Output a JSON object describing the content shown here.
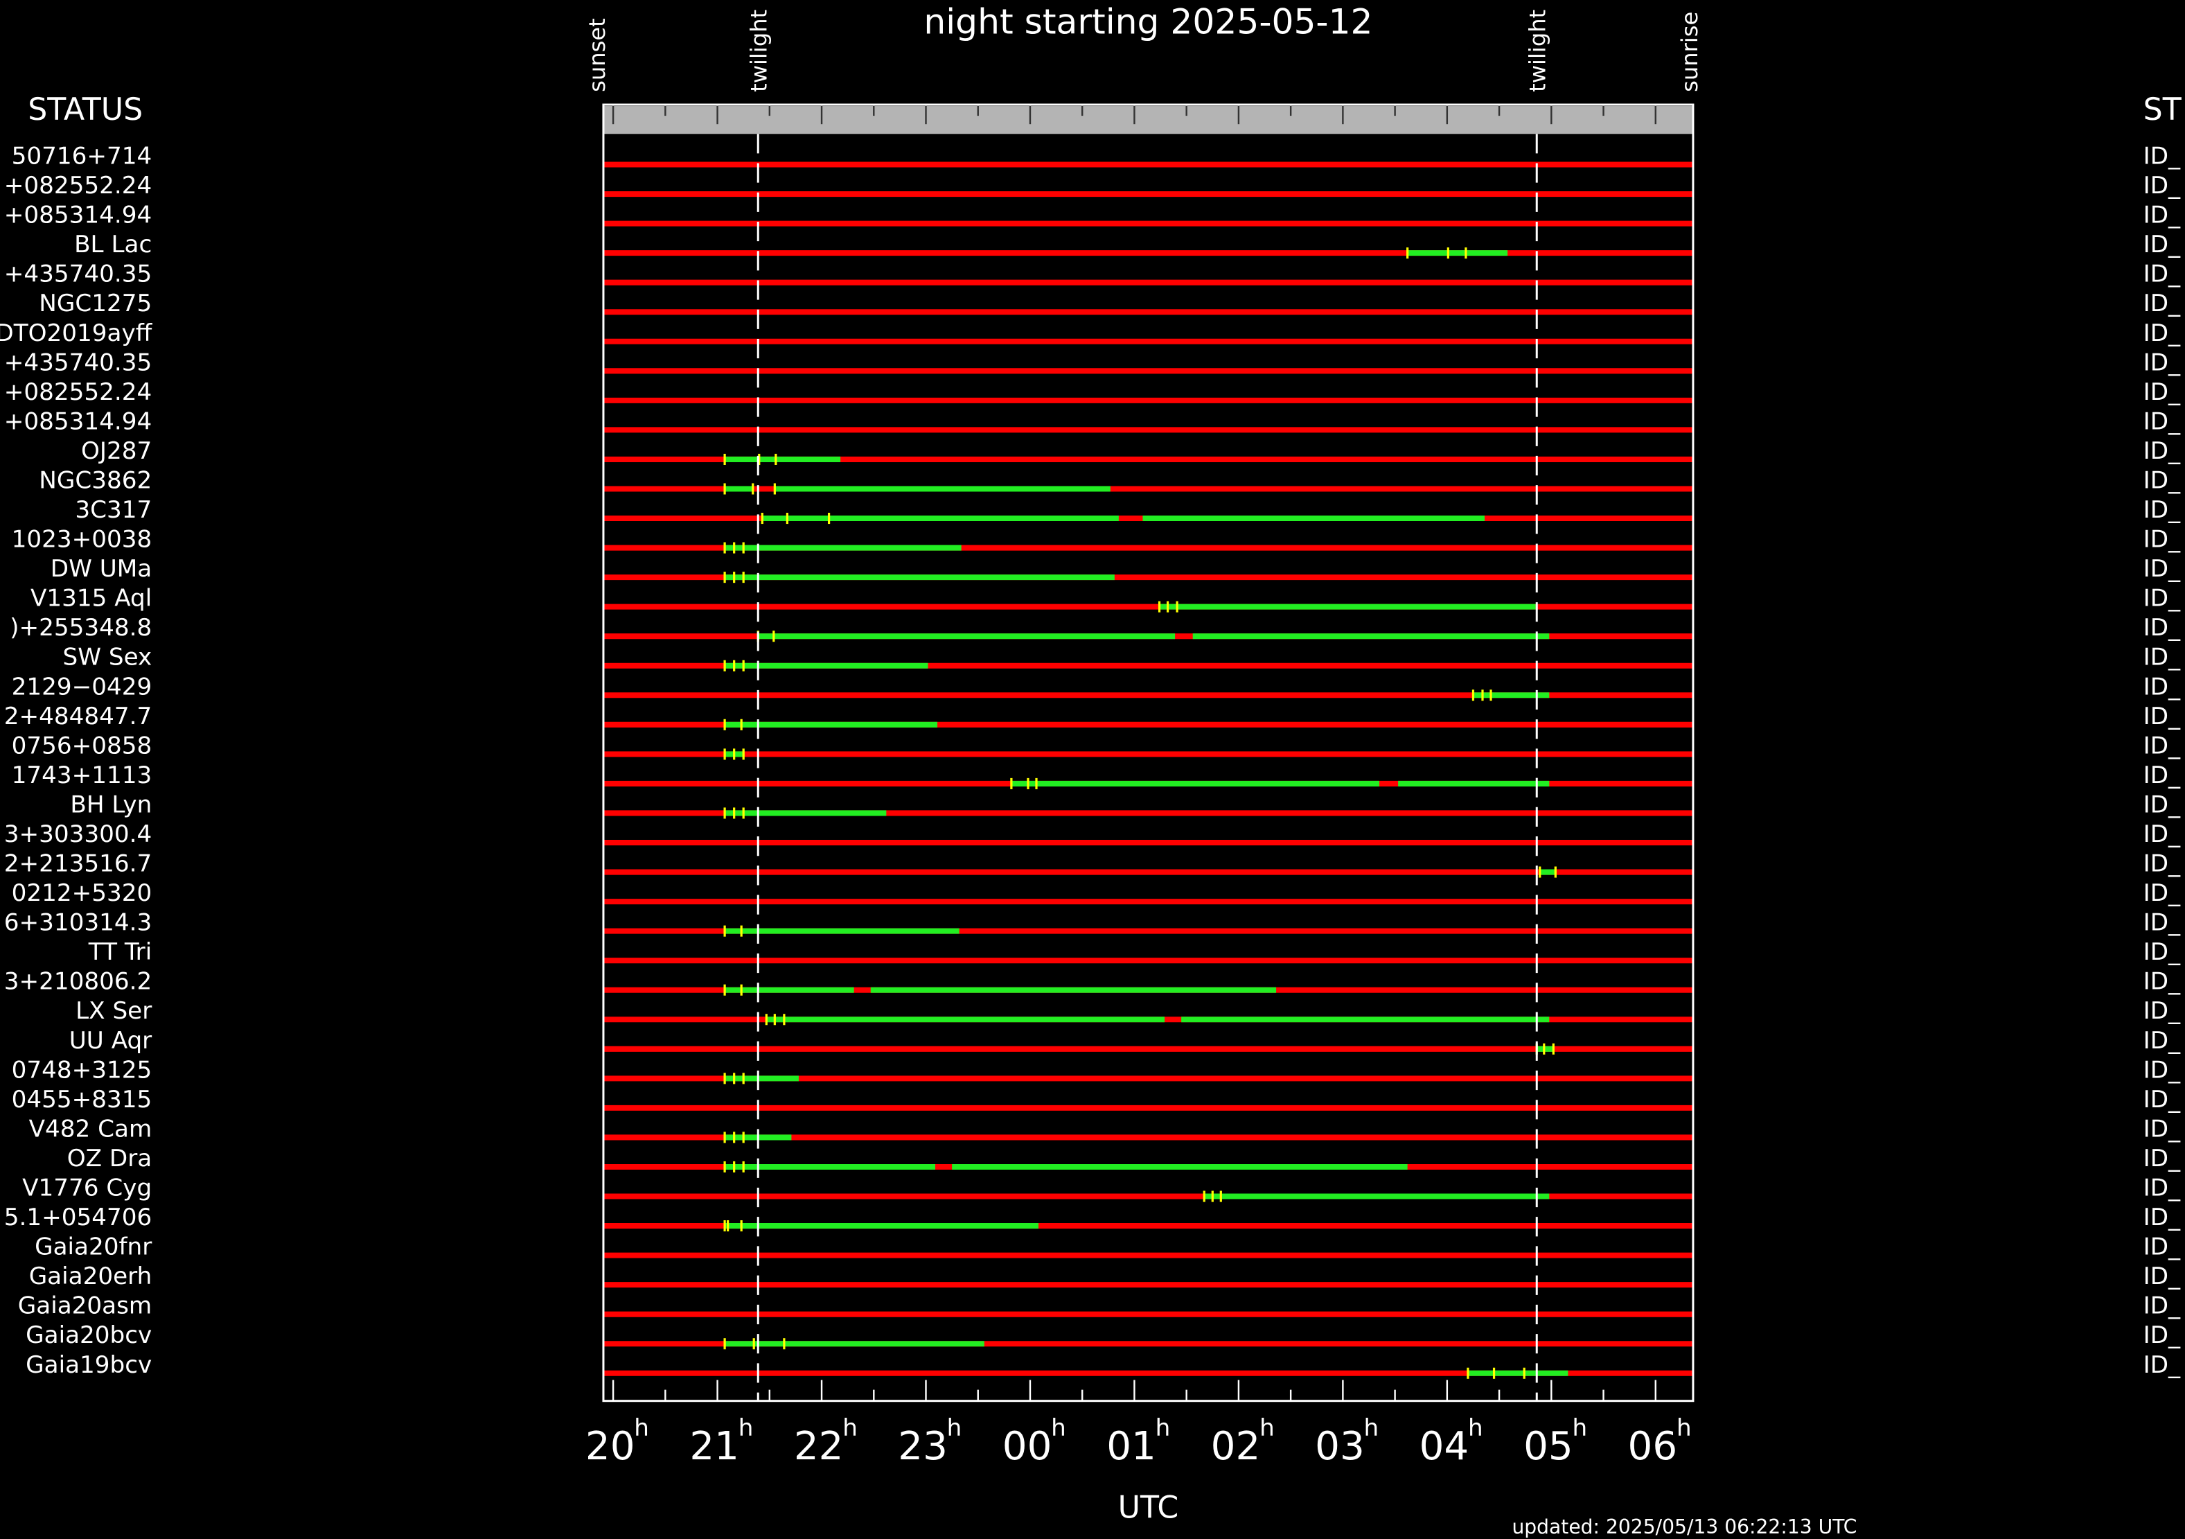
{
  "chart_data": {
    "type": "timeline",
    "title": "night starting 2025-05-12",
    "x_label": "UTC",
    "xlim": [
      19.906,
      30.36
    ],
    "xticks": [
      20,
      21,
      22,
      23,
      {
        "value": 24,
        "label": "00"
      },
      {
        "value": 25,
        "label": "01"
      },
      {
        "value": 26,
        "label": "02"
      },
      {
        "value": 27,
        "label": "03"
      },
      {
        "value": 28,
        "label": "04"
      },
      {
        "value": 29,
        "label": "05"
      },
      {
        "value": 30,
        "label": "06"
      }
    ],
    "tick_suffix": "h",
    "minor_xticks": [
      20.5,
      21.5,
      22.5,
      23.5,
      24.5,
      25.5,
      26.5,
      27.5,
      28.5,
      29.5
    ],
    "events": [
      {
        "label": "sunset",
        "time": 19.84,
        "line": false
      },
      {
        "label": "twilight",
        "time": 21.39,
        "line": true
      },
      {
        "label": "twilight",
        "time": 28.86,
        "line": true
      },
      {
        "label": "sunrise",
        "time": 30.32,
        "line": false
      }
    ],
    "colors": {
      "unavailable": "#ff0000",
      "available": "#22ee22",
      "marker": "#ffff00"
    },
    "status_header_left": "STATUS",
    "status_header_right": "ST",
    "updated": "updated: 2025/05/13 06:22:13 UTC",
    "rows": [
      {
        "name": "50716+714",
        "status": "ID_",
        "segments": [],
        "markers": []
      },
      {
        "name": "+082552.24",
        "status": "ID_",
        "segments": [],
        "markers": []
      },
      {
        "name": "+085314.94",
        "status": "ID_",
        "segments": [],
        "markers": []
      },
      {
        "name": "BL Lac",
        "status": "ID_",
        "segments": [
          [
            27.62,
            28.58
          ]
        ],
        "markers": [
          27.62,
          28.01,
          28.18
        ]
      },
      {
        "name": "+435740.35",
        "status": "ID_",
        "segments": [],
        "markers": []
      },
      {
        "name": "NGC1275",
        "status": "ID_",
        "segments": [],
        "markers": []
      },
      {
        "name": "DTO2019ayff",
        "status": "ID_",
        "segments": [],
        "markers": []
      },
      {
        "name": "+435740.35",
        "status": "ID_",
        "segments": [],
        "markers": []
      },
      {
        "name": "+082552.24",
        "status": "ID_",
        "segments": [],
        "markers": []
      },
      {
        "name": "+085314.94",
        "status": "ID_",
        "segments": [],
        "markers": []
      },
      {
        "name": "OJ287",
        "status": "ID_",
        "segments": [
          [
            21.07,
            22.18
          ]
        ],
        "markers": [
          21.07,
          21.4,
          21.56
        ]
      },
      {
        "name": "NGC3862",
        "status": "ID_",
        "segments": [
          [
            21.07,
            21.34
          ],
          [
            21.55,
            24.77
          ]
        ],
        "markers": [
          21.07,
          21.34,
          21.55
        ]
      },
      {
        "name": "3C317",
        "status": "ID_",
        "segments": [
          [
            21.43,
            24.85
          ],
          [
            25.08,
            28.36
          ]
        ],
        "markers": [
          21.43,
          21.67,
          22.07
        ]
      },
      {
        "name": "1023+0038",
        "status": "ID_",
        "segments": [
          [
            21.07,
            23.34
          ]
        ],
        "markers": [
          21.07,
          21.16,
          21.25
        ]
      },
      {
        "name": "DW UMa",
        "status": "ID_",
        "segments": [
          [
            21.07,
            24.81
          ]
        ],
        "markers": [
          21.07,
          21.16,
          21.25
        ]
      },
      {
        "name": "V1315 Aql",
        "status": "ID_",
        "segments": [
          [
            25.24,
            28.85
          ]
        ],
        "markers": [
          25.24,
          25.32,
          25.41
        ]
      },
      {
        "name": ")+255348.8",
        "status": "ID_",
        "segments": [
          [
            21.39,
            25.39
          ],
          [
            25.56,
            28.98
          ]
        ],
        "markers": [
          21.39,
          21.54
        ]
      },
      {
        "name": "SW Sex",
        "status": "ID_",
        "segments": [
          [
            21.07,
            23.02
          ]
        ],
        "markers": [
          21.07,
          21.16,
          21.25
        ]
      },
      {
        "name": "2129−0429",
        "status": "ID_",
        "segments": [
          [
            28.25,
            28.98
          ]
        ],
        "markers": [
          28.25,
          28.34,
          28.42
        ]
      },
      {
        "name": "2+484847.7",
        "status": "ID_",
        "segments": [
          [
            21.07,
            23.11
          ]
        ],
        "markers": [
          21.07,
          21.23
        ]
      },
      {
        "name": "0756+0858",
        "status": "ID_",
        "segments": [
          [
            21.07,
            21.26
          ]
        ],
        "markers": [
          21.07,
          21.16,
          21.25
        ]
      },
      {
        "name": "1743+1113",
        "status": "ID_",
        "segments": [
          [
            23.82,
            27.35
          ],
          [
            27.53,
            28.98
          ]
        ],
        "markers": [
          23.82,
          23.98,
          24.06
        ]
      },
      {
        "name": "BH Lyn",
        "status": "ID_",
        "segments": [
          [
            21.07,
            22.62
          ]
        ],
        "markers": [
          21.07,
          21.16,
          21.25
        ]
      },
      {
        "name": "3+303300.4",
        "status": "ID_",
        "segments": [],
        "markers": []
      },
      {
        "name": "2+213516.7",
        "status": "ID_",
        "segments": [
          [
            28.89,
            29.05
          ]
        ],
        "markers": [
          28.89,
          29.04
        ]
      },
      {
        "name": "0212+5320",
        "status": "ID_",
        "segments": [],
        "markers": []
      },
      {
        "name": "6+310314.3",
        "status": "ID_",
        "segments": [
          [
            21.07,
            23.32
          ]
        ],
        "markers": [
          21.07,
          21.23
        ]
      },
      {
        "name": "TT Tri",
        "status": "ID_",
        "segments": [],
        "markers": []
      },
      {
        "name": "3+210806.2",
        "status": "ID_",
        "segments": [
          [
            21.07,
            22.31
          ],
          [
            22.47,
            26.36
          ]
        ],
        "markers": [
          21.07,
          21.23
        ]
      },
      {
        "name": "LX Ser",
        "status": "ID_",
        "segments": [
          [
            21.47,
            25.29
          ],
          [
            25.45,
            28.98
          ]
        ],
        "markers": [
          21.47,
          21.55,
          21.64
        ]
      },
      {
        "name": "UU Aqr",
        "status": "ID_",
        "segments": [
          [
            28.86,
            29.02
          ]
        ],
        "markers": [
          28.86,
          28.93,
          29.02
        ]
      },
      {
        "name": "0748+3125",
        "status": "ID_",
        "segments": [
          [
            21.07,
            21.78
          ]
        ],
        "markers": [
          21.07,
          21.16,
          21.25
        ]
      },
      {
        "name": "0455+8315",
        "status": "ID_",
        "segments": [],
        "markers": []
      },
      {
        "name": "V482 Cam",
        "status": "ID_",
        "segments": [
          [
            21.07,
            21.71
          ]
        ],
        "markers": [
          21.07,
          21.16,
          21.25
        ]
      },
      {
        "name": "OZ Dra",
        "status": "ID_",
        "segments": [
          [
            21.07,
            23.09
          ],
          [
            23.25,
            27.62
          ]
        ],
        "markers": [
          21.07,
          21.16,
          21.25
        ]
      },
      {
        "name": "V1776 Cyg",
        "status": "ID_",
        "segments": [
          [
            25.67,
            28.98
          ]
        ],
        "markers": [
          25.67,
          25.75,
          25.83
        ]
      },
      {
        "name": "5.1+054706",
        "status": "ID_",
        "segments": [
          [
            21.07,
            24.08
          ]
        ],
        "markers": [
          21.07,
          21.1,
          21.23
        ]
      },
      {
        "name": "Gaia20fnr",
        "status": "ID_",
        "segments": [],
        "markers": []
      },
      {
        "name": "Gaia20erh",
        "status": "ID_",
        "segments": [],
        "markers": []
      },
      {
        "name": "Gaia20asm",
        "status": "ID_",
        "segments": [],
        "markers": []
      },
      {
        "name": "Gaia20bcv",
        "status": "ID_",
        "segments": [
          [
            21.07,
            23.56
          ]
        ],
        "markers": [
          21.07,
          21.35,
          21.64
        ]
      },
      {
        "name": "Gaia19bcv",
        "status": "ID_",
        "segments": [
          [
            28.2,
            29.16
          ]
        ],
        "markers": [
          28.2,
          28.45,
          28.74
        ]
      }
    ]
  }
}
